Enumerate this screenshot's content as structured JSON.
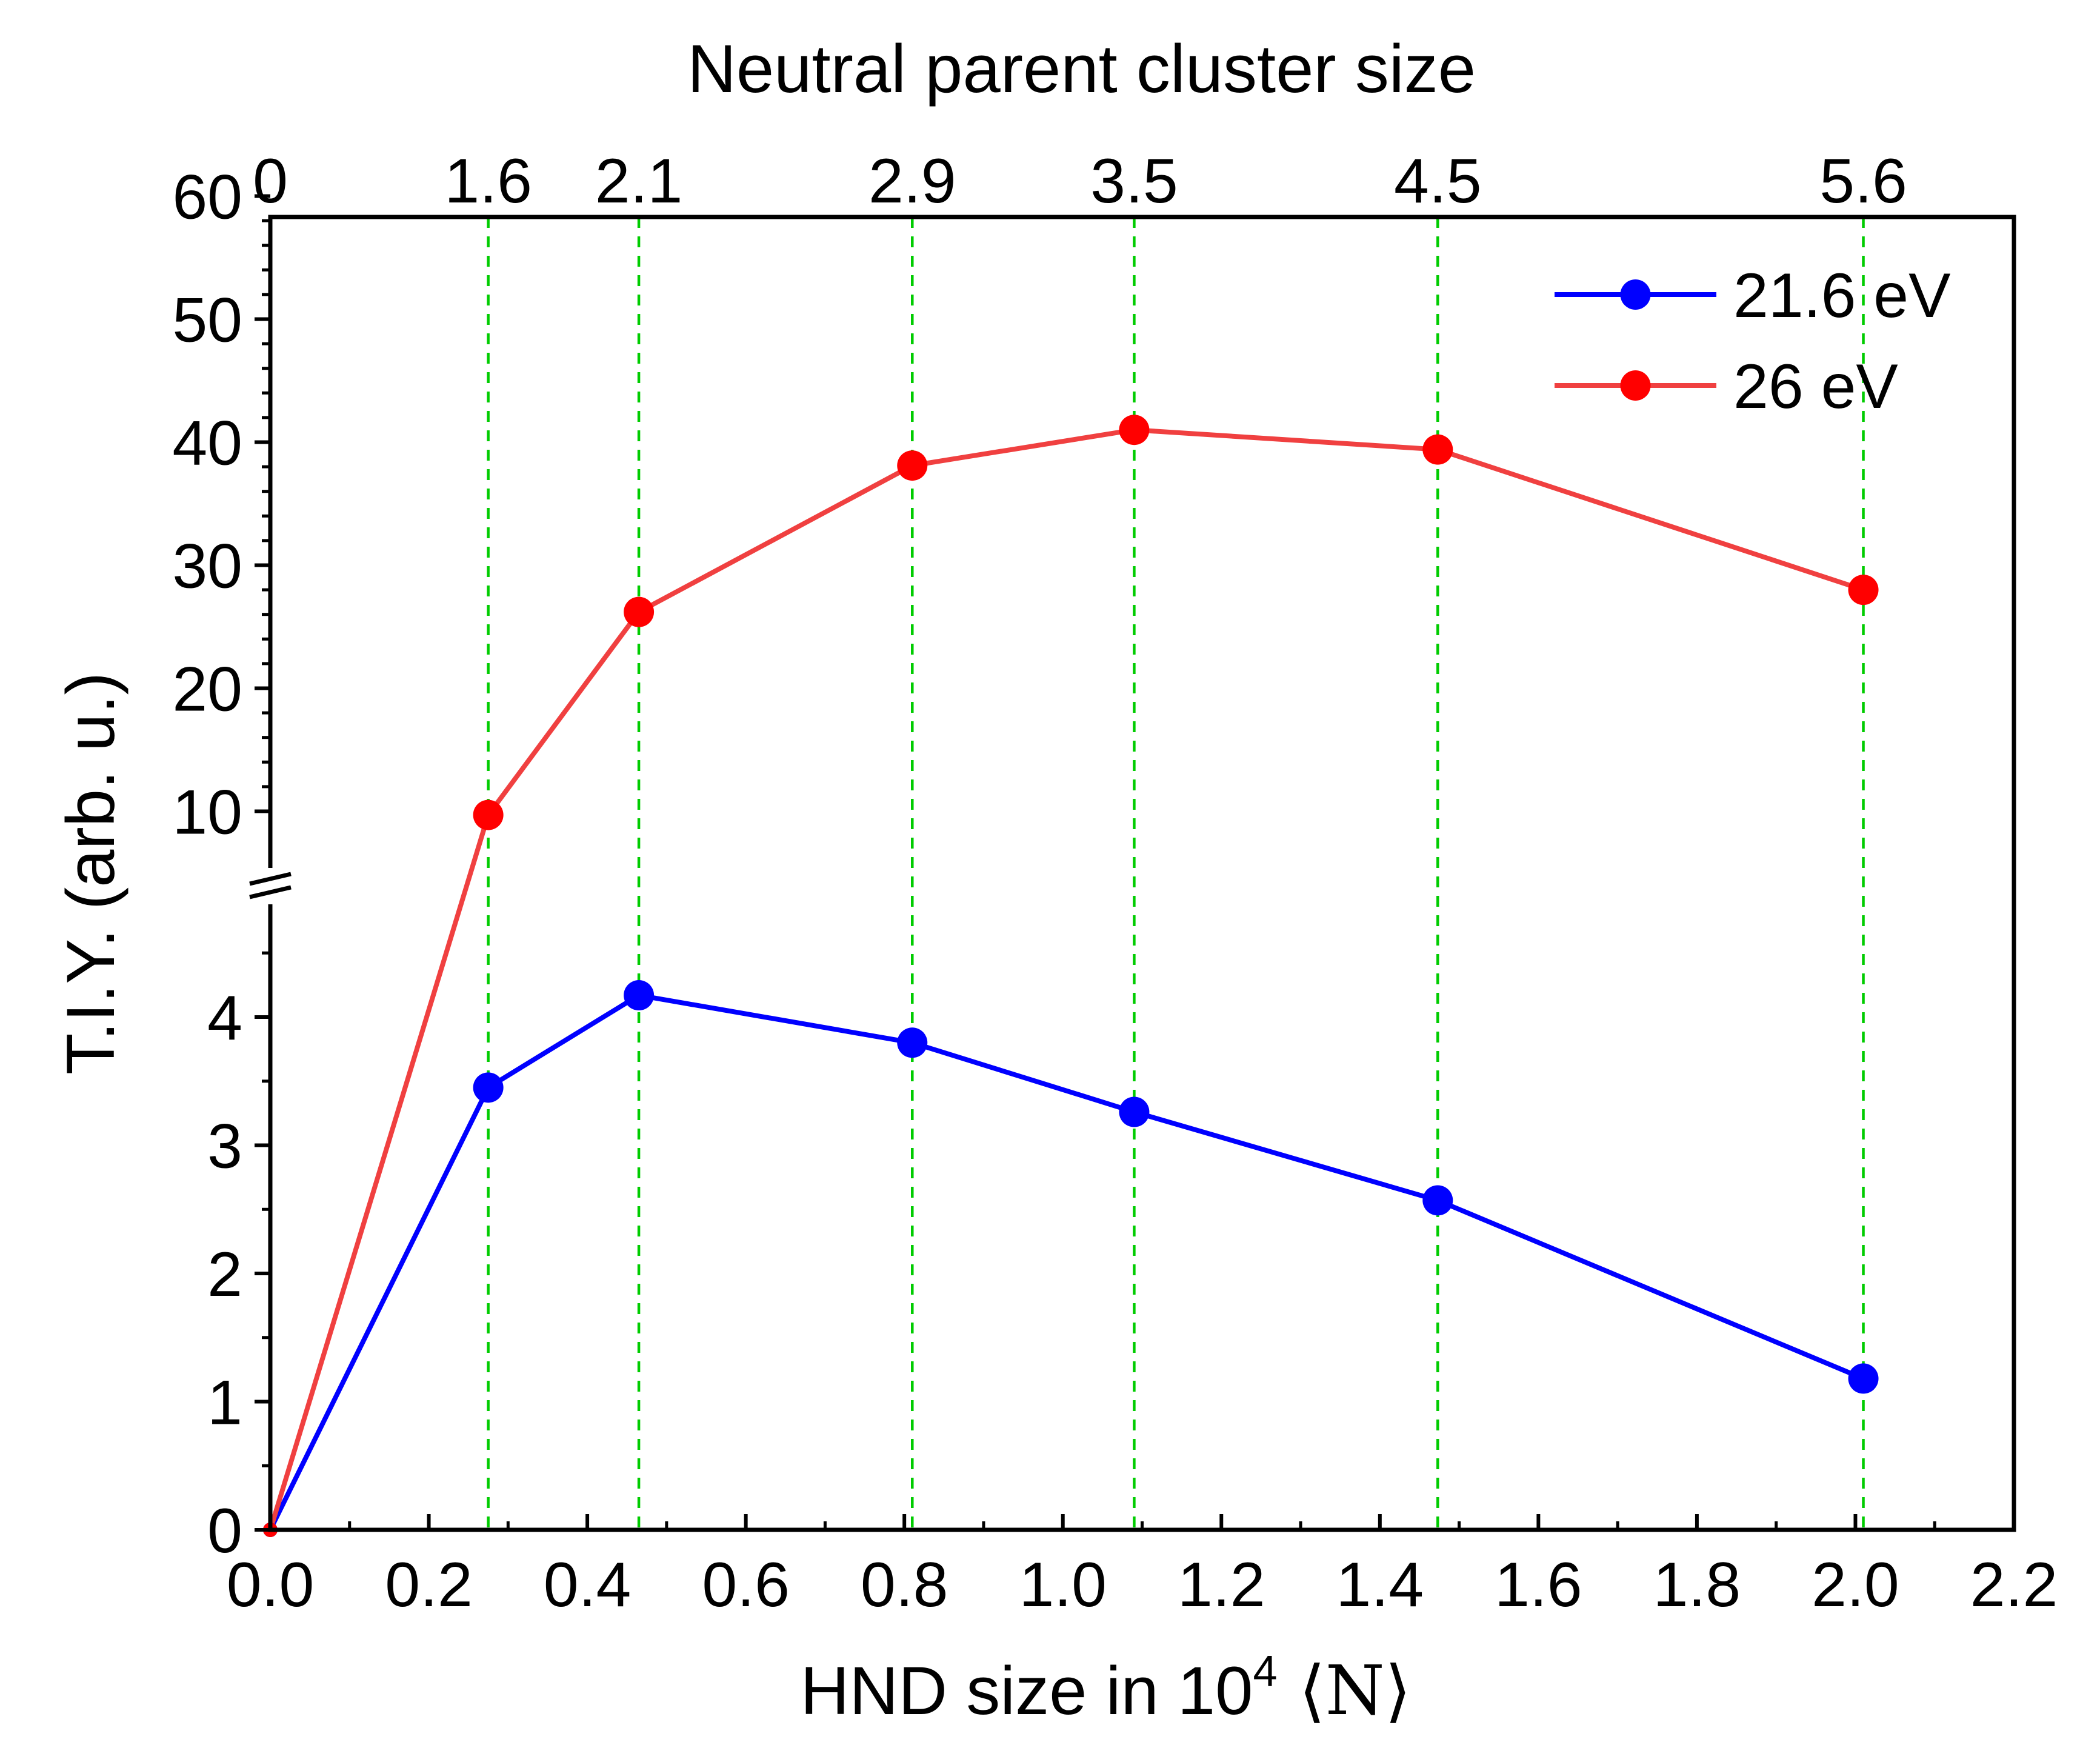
{
  "chart_data": {
    "type": "line",
    "xlabel": "HND size in 10",
    "xlabel_sup": "4",
    "xlabel_suffix": " ⟨N⟩",
    "ylabel": "T.I.Y. (arb. u.)",
    "top_axis_title": "Neutral parent cluster size",
    "xlim": [
      0,
      2.2
    ],
    "x_ticks": [
      "0.0",
      "0.2",
      "0.4",
      "0.6",
      "0.8",
      "1.0",
      "1.2",
      "1.4",
      "1.6",
      "1.8",
      "2.0",
      "2.2"
    ],
    "x_tick_values": [
      0,
      0.2,
      0.4,
      0.6,
      0.8,
      1.0,
      1.2,
      1.4,
      1.6,
      1.8,
      2.0,
      2.2
    ],
    "y_axis_break": true,
    "y_lower_range": [
      0,
      5
    ],
    "y_lower_ticks": [
      "0",
      "1",
      "2",
      "3",
      "4"
    ],
    "y_lower_tick_values": [
      0,
      1,
      2,
      3,
      4
    ],
    "y_upper_range": [
      5,
      60
    ],
    "y_upper_ticks": [
      "10",
      "20",
      "30",
      "40",
      "50",
      "60"
    ],
    "y_upper_tick_values": [
      10,
      20,
      30,
      40,
      50,
      60
    ],
    "top_ticks": [
      {
        "label": "0",
        "x": 0.0
      },
      {
        "label": "1.6",
        "x": 0.275
      },
      {
        "label": "2.1",
        "x": 0.465
      },
      {
        "label": "2.9",
        "x": 0.81
      },
      {
        "label": "3.5",
        "x": 1.09
      },
      {
        "label": "4.5",
        "x": 1.473
      },
      {
        "label": "5.6",
        "x": 2.01
      }
    ],
    "series": [
      {
        "name": "21.6 eV",
        "color": "#0000ff",
        "points": [
          [
            0,
            0
          ],
          [
            0.275,
            3.45
          ],
          [
            0.465,
            4.17
          ],
          [
            0.81,
            3.8
          ],
          [
            1.09,
            3.26
          ],
          [
            1.473,
            2.57
          ],
          [
            2.01,
            1.18
          ]
        ]
      },
      {
        "name": "26 eV",
        "color": "#ff0000",
        "line_color": "#f04040",
        "points": [
          [
            0,
            0
          ],
          [
            0.275,
            9.7
          ],
          [
            0.465,
            26.2
          ],
          [
            0.81,
            38.1
          ],
          [
            1.09,
            41.0
          ],
          [
            1.473,
            39.4
          ],
          [
            2.01,
            28.0
          ]
        ]
      }
    ],
    "guide_line_color": "#00cc00",
    "legend_position": "top-right"
  }
}
